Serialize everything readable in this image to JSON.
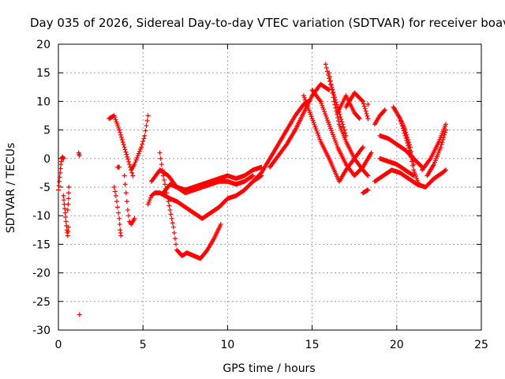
{
  "chart_data": {
    "type": "scatter",
    "title": "Day 035 of 2026, Sidereal Day-to-day VTEC variation (SDTVAR) for receiver boav",
    "xlabel": "GPS time / hours",
    "ylabel": "SDTVAR / TECUs",
    "xlim": [
      0,
      25
    ],
    "ylim": [
      -30,
      20
    ],
    "xticks": [
      0,
      5,
      10,
      15,
      20,
      25
    ],
    "yticks": [
      -30,
      -25,
      -20,
      -15,
      -10,
      -5,
      0,
      5,
      10,
      15,
      20
    ],
    "grid": true,
    "marker": "+",
    "color": "#ff0000",
    "series": [
      {
        "name": "trace-01",
        "x": [
          0.0,
          0.05,
          0.1,
          0.15,
          0.2,
          0.25,
          0.3
        ],
        "y": [
          -5.5,
          -4.0,
          -2.5,
          -1.0,
          0.0,
          0.3,
          0.0
        ]
      },
      {
        "name": "trace-02",
        "x": [
          0.3,
          0.35,
          0.4,
          0.45,
          0.5,
          0.55,
          0.6
        ],
        "y": [
          -6.5,
          -8.0,
          -9.5,
          -11.0,
          -12.5,
          -13.5,
          -12.0
        ]
      },
      {
        "name": "trace-03",
        "x": [
          0.55,
          0.6,
          0.62
        ],
        "y": [
          -9.0,
          -7.0,
          -5.0
        ]
      },
      {
        "name": "trace-04",
        "x": [
          1.2,
          1.25
        ],
        "y": [
          1.0,
          0.5
        ]
      },
      {
        "name": "trace-05",
        "x": [
          1.25
        ],
        "y": [
          -27.3
        ]
      },
      {
        "name": "trace-06",
        "x": [
          3.0,
          3.3,
          3.6,
          3.9,
          4.2,
          4.4
        ],
        "y": [
          7.0,
          7.5,
          5.0,
          2.0,
          -1.0,
          -3.0
        ]
      },
      {
        "name": "trace-07",
        "x": [
          3.3,
          3.4,
          3.5,
          3.6,
          3.65,
          3.7
        ],
        "y": [
          -5.0,
          -6.5,
          -8.5,
          -10.5,
          -12.5,
          -13.5
        ]
      },
      {
        "name": "trace-08",
        "x": [
          3.5,
          3.6
        ],
        "y": [
          -1.5,
          -1.5
        ]
      },
      {
        "name": "trace-09",
        "x": [
          3.9,
          4.0,
          4.1,
          4.2,
          4.3,
          4.4,
          4.5
        ],
        "y": [
          -3.0,
          -6.0,
          -9.0,
          -11.0,
          -11.5,
          -11.0,
          -10.5
        ]
      },
      {
        "name": "trace-10",
        "x": [
          4.3,
          4.5,
          4.7,
          4.9,
          5.1,
          5.3
        ],
        "y": [
          -2.0,
          -1.0,
          0.5,
          2.0,
          4.0,
          7.5
        ]
      },
      {
        "name": "trace-11",
        "x": [
          5.3,
          5.5,
          5.7,
          6.0,
          6.3,
          6.6,
          7.0,
          7.5,
          8.0,
          8.5,
          9.0,
          9.5,
          10.0,
          10.5,
          11.0,
          11.5,
          12.0
        ],
        "y": [
          -8.0,
          -6.5,
          -6.0,
          -6.0,
          -6.5,
          -7.0,
          -7.5,
          -8.5,
          -9.5,
          -10.5,
          -9.5,
          -8.5,
          -7.0,
          -6.5,
          -5.5,
          -4.0,
          -3.0
        ]
      },
      {
        "name": "trace-12",
        "x": [
          5.5,
          6.0,
          6.5,
          7.0,
          7.5,
          8.0,
          8.5,
          9.0,
          9.5,
          10.0,
          10.5,
          11.0,
          11.5
        ],
        "y": [
          -4.0,
          -2.0,
          -3.0,
          -5.0,
          -6.0,
          -5.5,
          -5.0,
          -4.5,
          -4.0,
          -4.0,
          -4.5,
          -4.0,
          -3.0
        ]
      },
      {
        "name": "trace-13",
        "x": [
          6.0,
          6.2,
          6.4,
          6.6,
          6.8,
          7.0,
          7.3,
          7.6,
          8.0,
          8.4,
          8.8,
          9.2,
          9.6
        ],
        "y": [
          1.0,
          -3.0,
          -6.0,
          -9.0,
          -12.0,
          -16.0,
          -17.0,
          -16.5,
          -17.0,
          -17.5,
          -16.0,
          -14.0,
          -11.5
        ]
      },
      {
        "name": "trace-14",
        "x": [
          6.2,
          6.6,
          7.0,
          7.5,
          8.0,
          8.5,
          9.0,
          9.5,
          10.0,
          10.5,
          11.0,
          11.5,
          12.0
        ],
        "y": [
          -6.0,
          -4.5,
          -5.0,
          -5.5,
          -5.0,
          -4.5,
          -4.0,
          -3.5,
          -3.0,
          -3.5,
          -3.0,
          -2.0,
          -1.5
        ]
      },
      {
        "name": "trace-15",
        "x": [
          11.5,
          12.0,
          12.5,
          13.0,
          13.5,
          14.0,
          14.5,
          14.8
        ],
        "y": [
          -4.0,
          -2.5,
          0.0,
          2.5,
          5.0,
          7.5,
          9.5,
          10.0
        ]
      },
      {
        "name": "trace-16",
        "x": [
          12.5,
          13.0,
          13.5,
          14.0,
          14.5,
          15.0,
          15.5,
          16.0
        ],
        "y": [
          -1.5,
          0.5,
          2.5,
          5.0,
          8.0,
          11.0,
          13.0,
          12.0
        ]
      },
      {
        "name": "trace-17",
        "x": [
          14.5,
          15.0,
          15.5,
          16.0,
          16.3,
          16.6,
          17.0,
          17.5,
          18.0
        ],
        "y": [
          11.0,
          7.0,
          3.0,
          0.0,
          -2.0,
          -4.0,
          -2.0,
          0.0,
          2.0
        ]
      },
      {
        "name": "trace-18",
        "x": [
          15.0,
          15.5,
          16.0,
          16.5,
          17.0,
          17.5,
          18.0,
          18.5
        ],
        "y": [
          12.0,
          10.0,
          6.0,
          2.0,
          -1.0,
          -3.0,
          -1.5,
          1.0
        ]
      },
      {
        "name": "trace-19",
        "x": [
          15.8,
          16.0,
          16.2,
          16.5,
          16.8,
          17.0
        ],
        "y": [
          16.5,
          14.0,
          12.0,
          9.0,
          6.0,
          4.0
        ]
      },
      {
        "name": "trace-20",
        "x": [
          16.0,
          16.3,
          16.6,
          17.0,
          17.5,
          18.0,
          18.3
        ],
        "y": [
          15.0,
          10.0,
          6.0,
          3.0,
          0.0,
          -2.0,
          -3.0
        ]
      },
      {
        "name": "trace-21",
        "x": [
          16.5,
          17.0,
          17.5,
          17.8
        ],
        "y": [
          8.0,
          11.0,
          8.0,
          7.0
        ]
      },
      {
        "name": "trace-22",
        "x": [
          17.0,
          17.5,
          18.0,
          18.3
        ],
        "y": [
          9.0,
          11.5,
          10.0,
          7.0
        ]
      },
      {
        "name": "trace-23",
        "x": [
          18.0,
          18.3
        ],
        "y": [
          -6.0,
          -5.5
        ]
      },
      {
        "name": "trace-24",
        "x": [
          18.3
        ],
        "y": [
          9.5
        ]
      },
      {
        "name": "trace-25",
        "x": [
          18.7,
          19.0,
          19.3
        ],
        "y": [
          6.0,
          7.5,
          8.5
        ]
      },
      {
        "name": "trace-26",
        "x": [
          18.7,
          19.2,
          19.7,
          20.2,
          20.7,
          21.2,
          21.7,
          22.2,
          22.7,
          22.9
        ],
        "y": [
          -4.0,
          -3.0,
          -2.0,
          -2.5,
          -3.5,
          -4.5,
          -5.0,
          -3.5,
          -2.5,
          -2.0
        ]
      },
      {
        "name": "trace-27",
        "x": [
          19.0,
          19.5,
          20.0,
          20.5,
          21.0,
          21.5
        ],
        "y": [
          4.0,
          3.5,
          2.5,
          1.5,
          0.0,
          -1.5
        ]
      },
      {
        "name": "trace-28",
        "x": [
          19.0,
          19.5,
          20.0,
          20.5,
          21.0
        ],
        "y": [
          0.0,
          -0.5,
          -1.0,
          -2.0,
          -3.0
        ]
      },
      {
        "name": "trace-29",
        "x": [
          19.8,
          20.2,
          20.5,
          20.8,
          21.0,
          21.3
        ],
        "y": [
          9.0,
          7.0,
          4.0,
          1.0,
          -2.0,
          -4.5
        ]
      },
      {
        "name": "trace-30",
        "x": [
          20.2,
          20.5,
          20.8,
          21.0
        ],
        "y": [
          7.0,
          5.0,
          2.0,
          -1.0
        ]
      },
      {
        "name": "trace-31",
        "x": [
          21.5,
          22.0,
          22.5,
          22.9
        ],
        "y": [
          -2.0,
          0.0,
          3.0,
          6.0
        ]
      },
      {
        "name": "trace-32",
        "x": [
          21.8,
          22.2,
          22.6,
          22.9
        ],
        "y": [
          -3.0,
          -1.0,
          2.0,
          5.0
        ]
      }
    ]
  }
}
